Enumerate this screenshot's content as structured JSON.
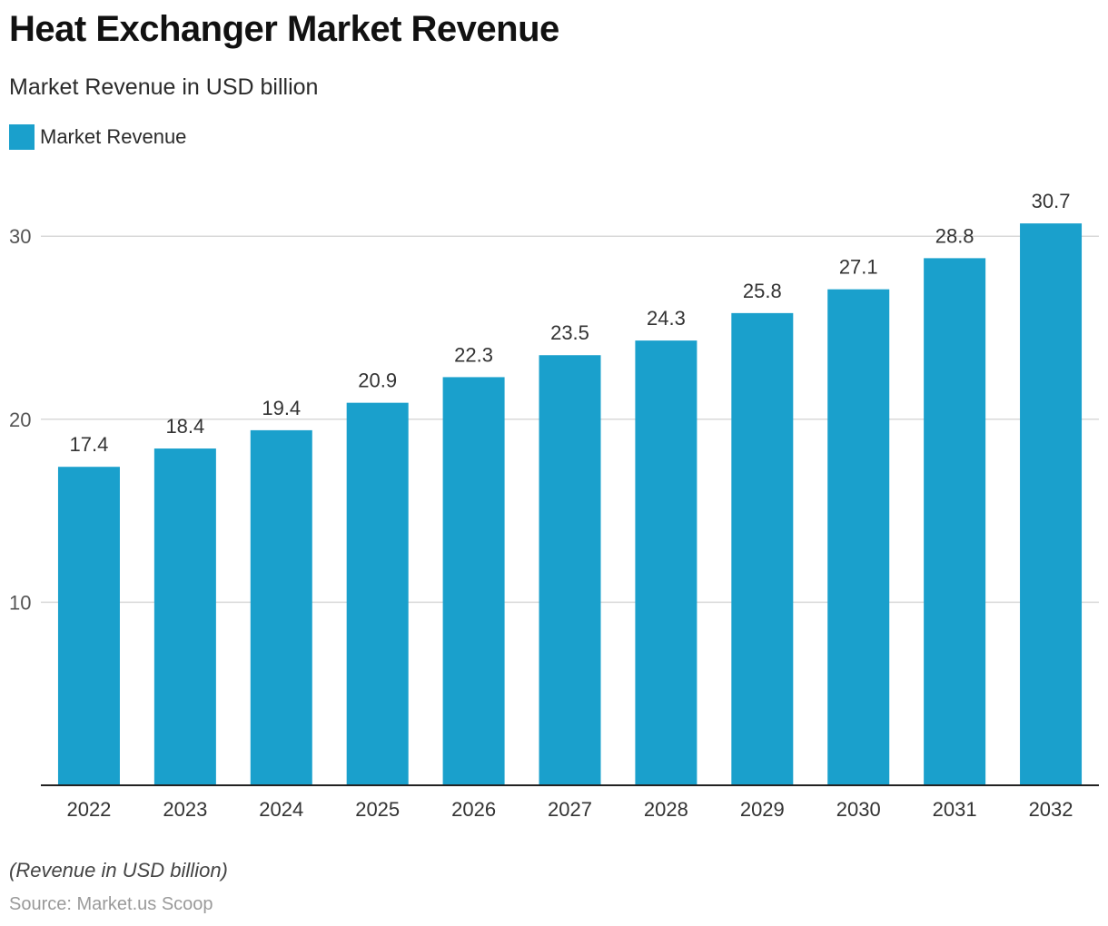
{
  "title": "Heat Exchanger Market Revenue",
  "subtitle": "Market Revenue in USD billion",
  "footnote": "(Revenue in USD billion)",
  "source": "Source: Market.us Scoop",
  "colors": {
    "bar": "#1aa0cc",
    "grid": "#d9d9d9",
    "axis": "#222222"
  },
  "chart_data": {
    "type": "bar",
    "title": "Heat Exchanger Market Revenue",
    "subtitle": "Market Revenue in USD billion",
    "categories": [
      "2022",
      "2023",
      "2024",
      "2025",
      "2026",
      "2027",
      "2028",
      "2029",
      "2030",
      "2031",
      "2032"
    ],
    "series": [
      {
        "name": "Market Revenue",
        "values": [
          17.4,
          18.4,
          19.4,
          20.9,
          22.3,
          23.5,
          24.3,
          25.8,
          27.1,
          28.8,
          30.7
        ]
      }
    ],
    "yticks": [
      10,
      20,
      30
    ],
    "ylim": [
      0,
      30.7
    ],
    "grid": true,
    "legend": "top-left"
  }
}
